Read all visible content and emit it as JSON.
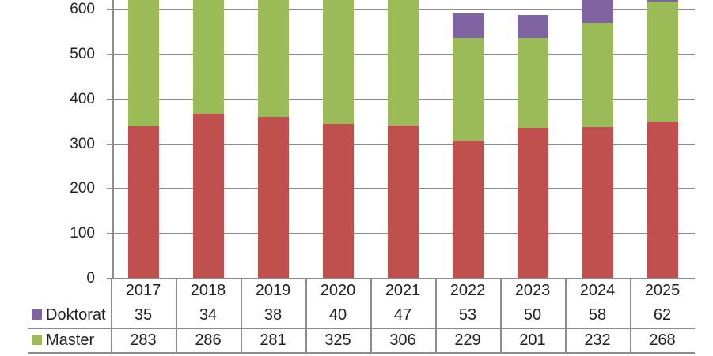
{
  "chart_data": {
    "type": "bar",
    "stacked": true,
    "title": "",
    "xlabel": "",
    "ylabel": "",
    "categories": [
      "2017",
      "2018",
      "2019",
      "2020",
      "2021",
      "2022",
      "2023",
      "2024",
      "2025"
    ],
    "series": [
      {
        "name": "",
        "color": "#c0504d",
        "estimated_from_pixels": true,
        "values": [
          338,
          366,
          359,
          343,
          339,
          307,
          335,
          336,
          348
        ]
      },
      {
        "name": "Master",
        "color": "#9bbb59",
        "values": [
          283,
          286,
          281,
          325,
          306,
          229,
          201,
          232,
          268
        ]
      },
      {
        "name": "Doktorat",
        "color": "#8064a2",
        "values": [
          35,
          34,
          38,
          40,
          47,
          53,
          50,
          58,
          62
        ]
      }
    ],
    "y_ticks": [
      0,
      100,
      200,
      300,
      400,
      500,
      600
    ],
    "ylim_visible": [
      0,
      618
    ],
    "grid": "horizontal",
    "legend_position": "table-left",
    "top_cut_off": true
  },
  "table": {
    "year_row": [
      "2017",
      "2018",
      "2019",
      "2020",
      "2021",
      "2022",
      "2023",
      "2024",
      "2025"
    ],
    "rows": [
      {
        "label": "Doktorat",
        "swatch_color": "#8064a2",
        "values": [
          "35",
          "34",
          "38",
          "40",
          "47",
          "53",
          "50",
          "58",
          "62"
        ]
      },
      {
        "label": "Master",
        "swatch_color": "#9bbb59",
        "values": [
          "283",
          "286",
          "281",
          "325",
          "306",
          "229",
          "201",
          "232",
          "268"
        ]
      }
    ]
  },
  "colors": {
    "grid": "#8c8c8c",
    "text": "#1f1f1f",
    "background": "#ffffff"
  }
}
